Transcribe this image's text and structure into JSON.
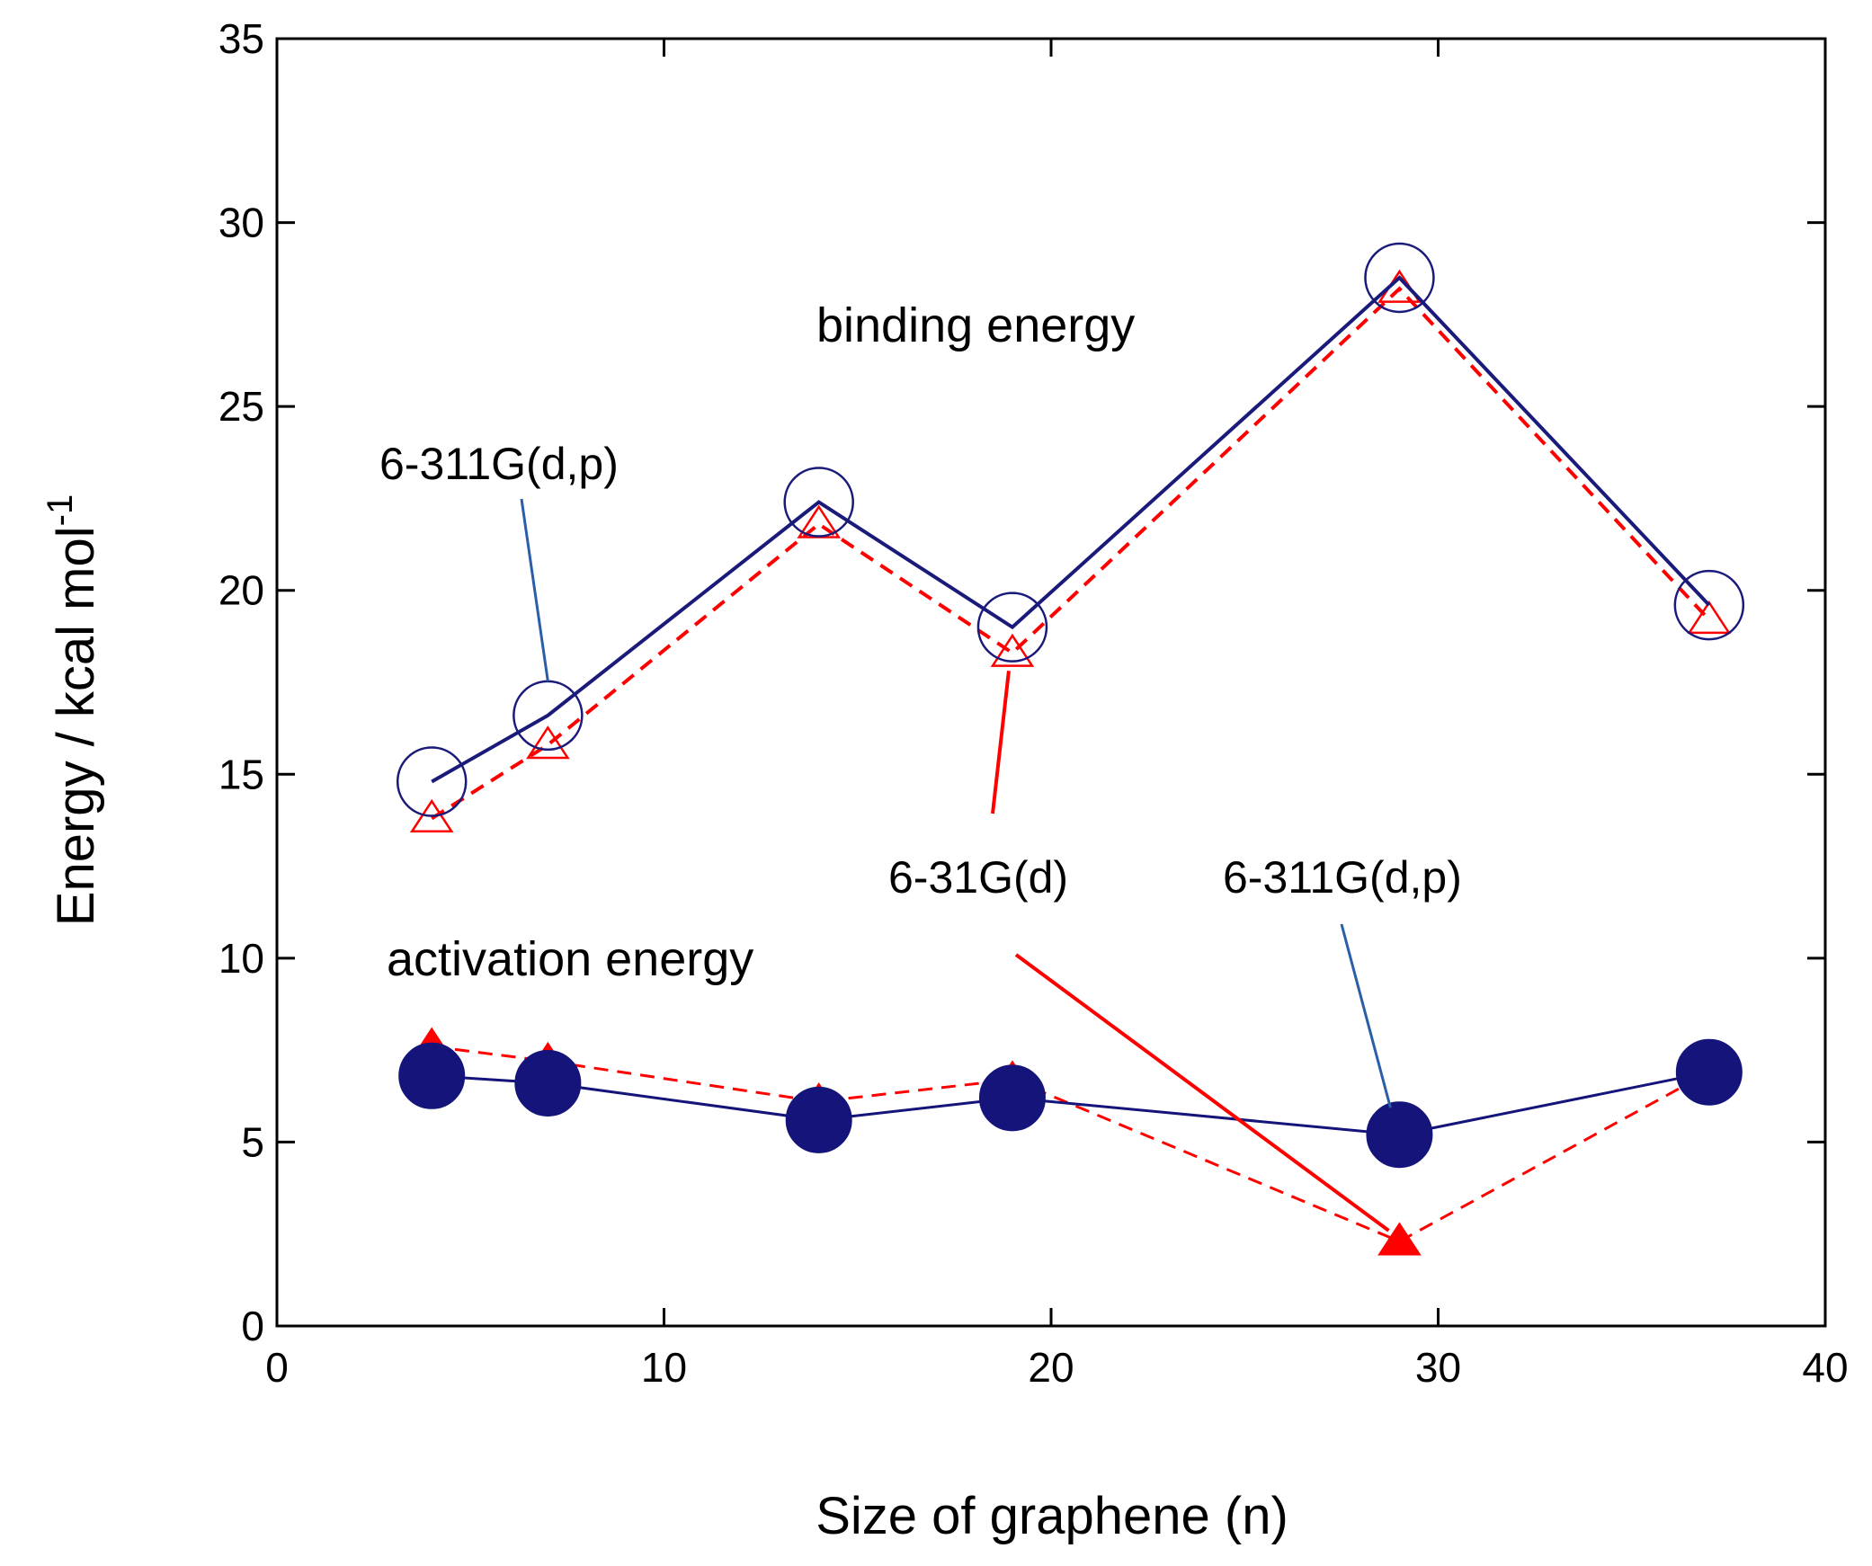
{
  "chart_data": {
    "type": "line",
    "xlabel": "Size of graphene (n)",
    "ylabel": "Energy / kcal mol",
    "ylabel_superscript": "-1",
    "xlim": [
      0,
      40
    ],
    "ylim": [
      0,
      35
    ],
    "xticks": [
      0,
      10,
      20,
      30,
      40
    ],
    "yticks": [
      0,
      5,
      10,
      15,
      20,
      25,
      30,
      35
    ],
    "grid": false,
    "series": [
      {
        "name": "6-311G(d,p)",
        "group": "binding energy",
        "marker": "open-circle",
        "line": "solid",
        "color": "#1a1a7a",
        "x": [
          4,
          7,
          14,
          19,
          29,
          37
        ],
        "y": [
          14.8,
          16.6,
          22.4,
          19.0,
          28.5,
          19.6
        ]
      },
      {
        "name": "6-31G(d)",
        "group": "binding energy",
        "marker": "open-triangle",
        "line": "dashed",
        "color": "#ff0000",
        "x": [
          4,
          7,
          14,
          19,
          29,
          37
        ],
        "y": [
          13.8,
          15.8,
          21.8,
          18.3,
          28.2,
          19.2
        ]
      },
      {
        "name": "6-311G(d,p)",
        "group": "activation energy",
        "marker": "filled-circle",
        "line": "solid",
        "color": "#14147a",
        "x": [
          4,
          7,
          14,
          19,
          29,
          37
        ],
        "y": [
          6.8,
          6.6,
          5.6,
          6.2,
          5.2,
          6.9
        ]
      },
      {
        "name": "6-31G(d)",
        "group": "activation energy",
        "marker": "filled-triangle",
        "line": "dashed",
        "color": "#ff0000",
        "x": [
          4,
          7,
          14,
          19,
          29,
          37
        ],
        "y": [
          7.6,
          7.2,
          6.1,
          6.7,
          2.3,
          6.9
        ]
      }
    ],
    "annotations": {
      "binding_energy": "binding energy",
      "activation_energy": "activation energy",
      "basis_a": "6-311G(d,p)",
      "basis_b": "6-31G(d)",
      "basis_c": "6-311G(d,p)"
    },
    "colors": {
      "navy": "#14147a",
      "red": "#ff0000",
      "leader_blue": "#2a5ea8"
    }
  }
}
